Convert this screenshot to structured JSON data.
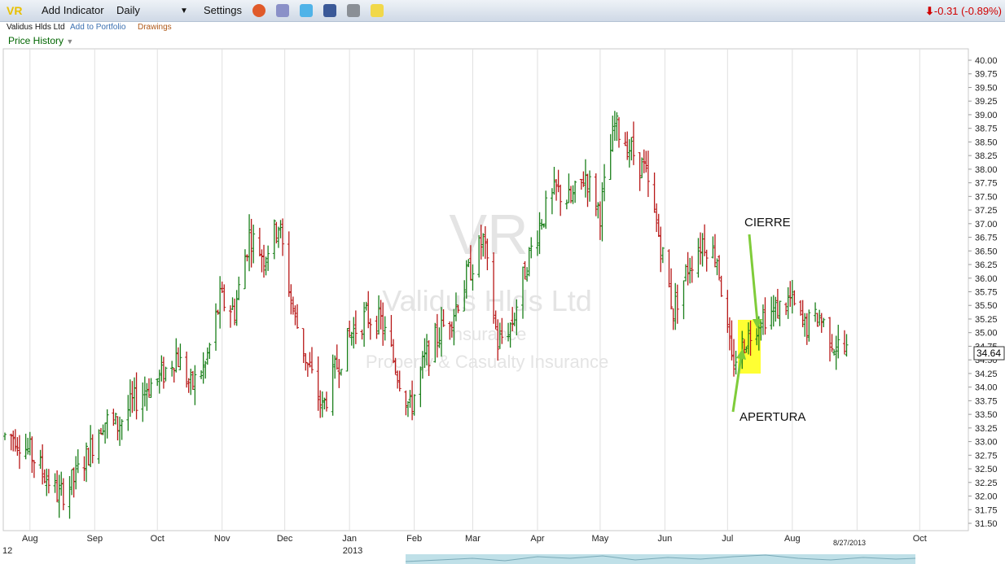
{
  "toolbar": {
    "ticker": "VR",
    "add_indicator": "Add Indicator",
    "period": "Daily",
    "settings": "Settings",
    "change": "-0.31 (-0.89%)",
    "icons": [
      "alarm-clock-icon",
      "database-icon",
      "twitter-icon",
      "facebook-icon",
      "binoculars-icon",
      "notes-icon"
    ]
  },
  "subbar": {
    "company": "Validus Hlds Ltd",
    "add_portfolio": "Add to Portfolio",
    "drawings": "Drawings"
  },
  "panel_title": "Price History",
  "watermark": {
    "symbol": "VR",
    "company": "Validus Hlds Ltd",
    "sector": "Insurance",
    "industry": "Property & Casualty Insurance"
  },
  "annotations": {
    "close": "CIERRE",
    "open": "APERTURA"
  },
  "colors": {
    "up": "#1a7f1a",
    "down": "#b81818",
    "highlight": "#ffff33",
    "arrow": "#7fcc3a"
  },
  "chart_data": {
    "type": "ohlc",
    "y_ticks": [
      "31.50",
      "31.75",
      "32.00",
      "32.25",
      "32.50",
      "32.75",
      "33.00",
      "33.25",
      "33.50",
      "33.75",
      "34.00",
      "34.25",
      "34.50",
      "34.75",
      "35.00",
      "35.25",
      "35.50",
      "35.75",
      "36.00",
      "36.25",
      "36.50",
      "36.75",
      "37.00",
      "37.25",
      "37.50",
      "37.75",
      "38.00",
      "38.25",
      "38.50",
      "38.75",
      "39.00",
      "39.25",
      "39.50",
      "39.75",
      "40.00"
    ],
    "ylim": [
      31.5,
      40.0
    ],
    "x_months": [
      "Aug",
      "Sep",
      "Oct",
      "Nov",
      "Dec",
      "Jan",
      "Feb",
      "Mar",
      "Apr",
      "May",
      "Jun",
      "Jul",
      "Aug",
      "Oct"
    ],
    "year_labels": [
      "12",
      "2013"
    ],
    "current_date": "8/27/2013",
    "last_price": "34.64",
    "prices": [
      [
        "2012-07-25",
        33.1
      ],
      [
        "2012-08-01",
        32.8
      ],
      [
        "2012-08-08",
        32.4
      ],
      [
        "2012-08-15",
        32.0
      ],
      [
        "2012-08-22",
        32.3
      ],
      [
        "2012-08-29",
        32.8
      ],
      [
        "2012-09-05",
        33.4
      ],
      [
        "2012-09-12",
        33.3
      ],
      [
        "2012-09-19",
        33.7
      ],
      [
        "2012-09-26",
        34.0
      ],
      [
        "2012-10-03",
        34.2
      ],
      [
        "2012-10-10",
        34.6
      ],
      [
        "2012-10-17",
        34.0
      ],
      [
        "2012-10-24",
        34.4
      ],
      [
        "2012-10-31",
        35.6
      ],
      [
        "2012-11-07",
        35.4
      ],
      [
        "2012-11-14",
        36.8
      ],
      [
        "2012-11-21",
        36.4
      ],
      [
        "2012-11-28",
        37.0
      ],
      [
        "2012-12-05",
        35.4
      ],
      [
        "2012-12-12",
        34.4
      ],
      [
        "2012-12-19",
        33.6
      ],
      [
        "2012-12-26",
        34.4
      ],
      [
        "2013-01-02",
        35.0
      ],
      [
        "2013-01-09",
        35.3
      ],
      [
        "2013-01-16",
        35.2
      ],
      [
        "2013-01-23",
        34.4
      ],
      [
        "2013-01-30",
        33.6
      ],
      [
        "2013-02-06",
        34.5
      ],
      [
        "2013-02-13",
        35.0
      ],
      [
        "2013-02-20",
        35.4
      ],
      [
        "2013-02-27",
        36.1
      ],
      [
        "2013-03-06",
        36.7
      ],
      [
        "2013-03-13",
        34.8
      ],
      [
        "2013-03-20",
        35.2
      ],
      [
        "2013-03-27",
        36.3
      ],
      [
        "2013-04-03",
        37.1
      ],
      [
        "2013-04-10",
        37.6
      ],
      [
        "2013-04-17",
        37.4
      ],
      [
        "2013-04-24",
        37.9
      ],
      [
        "2013-05-01",
        37.2
      ],
      [
        "2013-05-08",
        38.8
      ],
      [
        "2013-05-15",
        38.4
      ],
      [
        "2013-05-22",
        38.0
      ],
      [
        "2013-05-29",
        36.8
      ],
      [
        "2013-06-05",
        35.4
      ],
      [
        "2013-06-12",
        36.2
      ],
      [
        "2013-06-19",
        36.7
      ],
      [
        "2013-06-26",
        36.4
      ],
      [
        "2013-07-03",
        34.4
      ],
      [
        "2013-07-10",
        34.9
      ],
      [
        "2013-07-17",
        35.3
      ],
      [
        "2013-07-24",
        35.4
      ],
      [
        "2013-07-31",
        35.6
      ],
      [
        "2013-08-07",
        35.1
      ],
      [
        "2013-08-14",
        35.3
      ],
      [
        "2013-08-21",
        34.8
      ],
      [
        "2013-08-27",
        34.64
      ]
    ]
  }
}
